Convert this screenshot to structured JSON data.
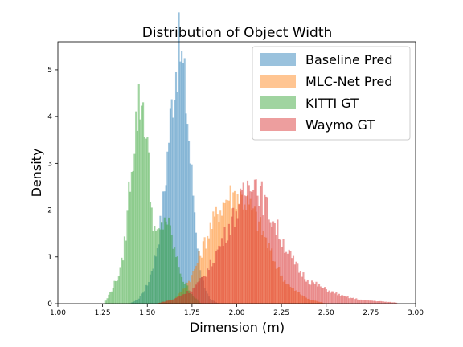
{
  "chart_data": {
    "type": "histogram",
    "title": "Distribution of Object Width",
    "xlabel": "Dimension (m)",
    "ylabel": "Density",
    "xlim": [
      1.0,
      3.0
    ],
    "ylim": [
      0,
      5.6
    ],
    "xticks": [
      "1.00",
      "1.25",
      "1.50",
      "1.75",
      "2.00",
      "2.25",
      "2.50",
      "2.75",
      "3.00"
    ],
    "yticks": [
      "0",
      "1",
      "2",
      "3",
      "4",
      "5"
    ],
    "legend_position": "top-right",
    "grid": false,
    "series": [
      {
        "name": "Baseline Pred",
        "color": "#1f77b4",
        "x": [
          1.4,
          1.45,
          1.5,
          1.55,
          1.58,
          1.6,
          1.62,
          1.64,
          1.66,
          1.68,
          1.7,
          1.72,
          1.74,
          1.76,
          1.78,
          1.8,
          1.82,
          1.85,
          1.9
        ],
        "y": [
          0.0,
          0.1,
          0.4,
          1.1,
          1.9,
          2.6,
          3.6,
          4.4,
          5.1,
          5.5,
          5.0,
          4.2,
          3.1,
          2.2,
          1.3,
          0.7,
          0.3,
          0.1,
          0.0
        ]
      },
      {
        "name": "MLC-Net Pred",
        "color": "#ff7f0e",
        "x": [
          1.55,
          1.65,
          1.7,
          1.75,
          1.8,
          1.85,
          1.9,
          1.95,
          2.0,
          2.05,
          2.1,
          2.15,
          2.2,
          2.25,
          2.3,
          2.4,
          2.5
        ],
        "y": [
          0.0,
          0.1,
          0.3,
          0.6,
          1.1,
          1.6,
          2.0,
          2.3,
          2.35,
          2.2,
          1.9,
          1.5,
          1.0,
          0.6,
          0.35,
          0.1,
          0.0
        ]
      },
      {
        "name": "KITTI GT",
        "color": "#2ca02c",
        "x": [
          1.26,
          1.3,
          1.35,
          1.38,
          1.4,
          1.42,
          1.44,
          1.46,
          1.48,
          1.5,
          1.52,
          1.55,
          1.58,
          1.6,
          1.63,
          1.66,
          1.7,
          1.75,
          1.8
        ],
        "y": [
          0.0,
          0.3,
          0.7,
          1.5,
          2.6,
          3.2,
          4.0,
          4.35,
          4.2,
          3.4,
          2.1,
          1.4,
          1.6,
          1.9,
          1.5,
          1.0,
          0.5,
          0.2,
          0.0
        ]
      },
      {
        "name": "Waymo GT",
        "color": "#d62728",
        "x": [
          1.55,
          1.65,
          1.75,
          1.8,
          1.85,
          1.9,
          1.95,
          2.0,
          2.05,
          2.08,
          2.12,
          2.15,
          2.2,
          2.25,
          2.3,
          2.35,
          2.4,
          2.5,
          2.6,
          2.7,
          2.8,
          2.9
        ],
        "y": [
          0.0,
          0.1,
          0.3,
          0.5,
          0.8,
          1.2,
          1.6,
          2.0,
          2.4,
          2.8,
          2.5,
          2.2,
          1.8,
          1.4,
          1.0,
          0.7,
          0.5,
          0.3,
          0.15,
          0.08,
          0.05,
          0.02
        ]
      }
    ]
  }
}
